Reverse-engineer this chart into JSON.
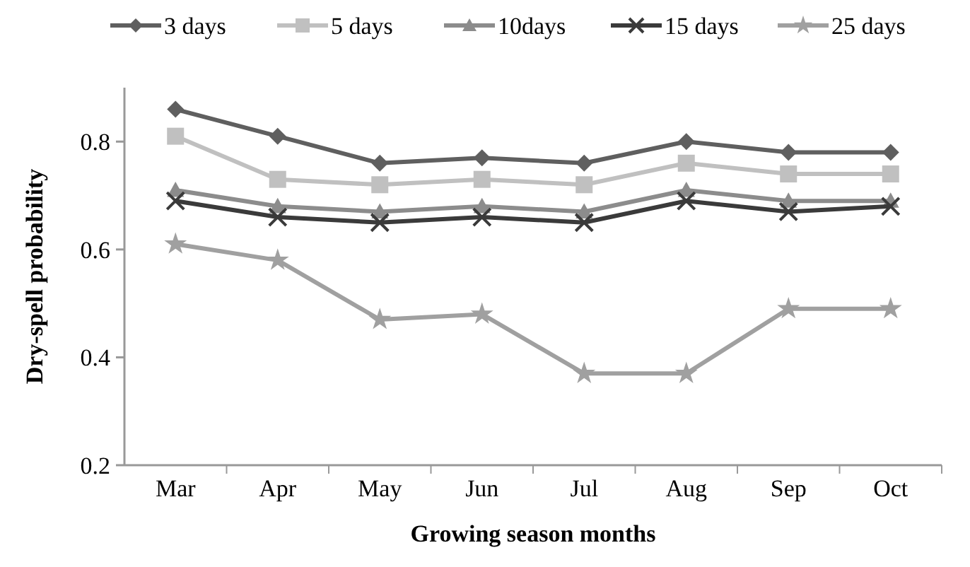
{
  "chart_data": {
    "type": "line",
    "xlabel": "Growing season months",
    "ylabel": "Dry-spell probability",
    "categories": [
      "Mar",
      "Apr",
      "May",
      "Jun",
      "Jul",
      "Aug",
      "Sep",
      "Oct"
    ],
    "series": [
      {
        "name": "3 days",
        "color": "#5f5f5f",
        "marker": "diamond",
        "values": [
          0.86,
          0.81,
          0.76,
          0.77,
          0.76,
          0.8,
          0.78,
          0.78
        ]
      },
      {
        "name": "5 days",
        "color": "#c0c0c0",
        "marker": "square",
        "values": [
          0.81,
          0.73,
          0.72,
          0.73,
          0.72,
          0.76,
          0.74,
          0.74
        ]
      },
      {
        "name": "10days",
        "color": "#8c8c8c",
        "marker": "triangle",
        "values": [
          0.71,
          0.68,
          0.67,
          0.68,
          0.67,
          0.71,
          0.69,
          0.69
        ]
      },
      {
        "name": "15 days",
        "color": "#3a3a3a",
        "marker": "cross",
        "values": [
          0.69,
          0.66,
          0.65,
          0.66,
          0.65,
          0.69,
          0.67,
          0.68
        ]
      },
      {
        "name": "25 days",
        "color": "#a0a0a0",
        "marker": "star",
        "values": [
          0.61,
          0.58,
          0.47,
          0.48,
          0.37,
          0.37,
          0.49,
          0.49
        ]
      }
    ],
    "ylim": [
      0.2,
      0.9
    ],
    "yticks": [
      0.2,
      0.4,
      0.6,
      0.8
    ],
    "grid": false,
    "legend": "top"
  }
}
